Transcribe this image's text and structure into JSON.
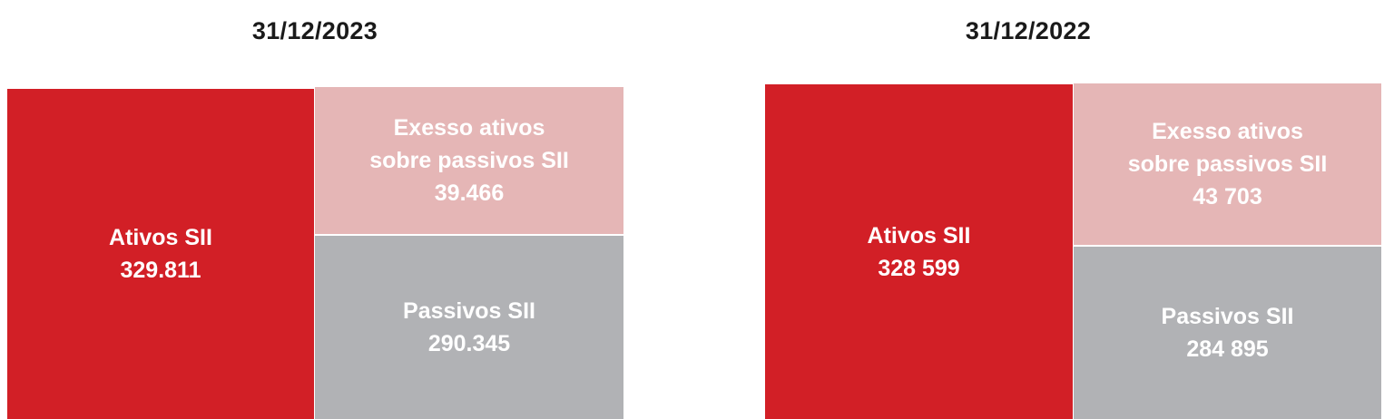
{
  "colors": {
    "assets": "#d21f26",
    "excess": "#e5b6b6",
    "liabilities": "#b1b2b5"
  },
  "chart_data": [
    {
      "type": "treemap",
      "title": "31/12/2023",
      "items": [
        {
          "label": "Ativos SII",
          "value_label": "329.811",
          "value": 329811
        },
        {
          "label": "Exesso ativos sobre passivos SII",
          "label_lines": [
            "Exesso ativos",
            "sobre passivos SII"
          ],
          "value_label": "39.466",
          "value": 39466
        },
        {
          "label": "Passivos SII",
          "value_label": "290.345",
          "value": 290345
        }
      ]
    },
    {
      "type": "treemap",
      "title": "31/12/2022",
      "items": [
        {
          "label": "Ativos SII",
          "value_label": "328 599",
          "value": 328599
        },
        {
          "label": "Exesso ativos sobre passivos SII",
          "label_lines": [
            "Exesso ativos",
            "sobre passivos SII"
          ],
          "value_label": "43 703",
          "value": 43703
        },
        {
          "label": "Passivos SII",
          "value_label": "284 895",
          "value": 284895
        }
      ]
    }
  ]
}
